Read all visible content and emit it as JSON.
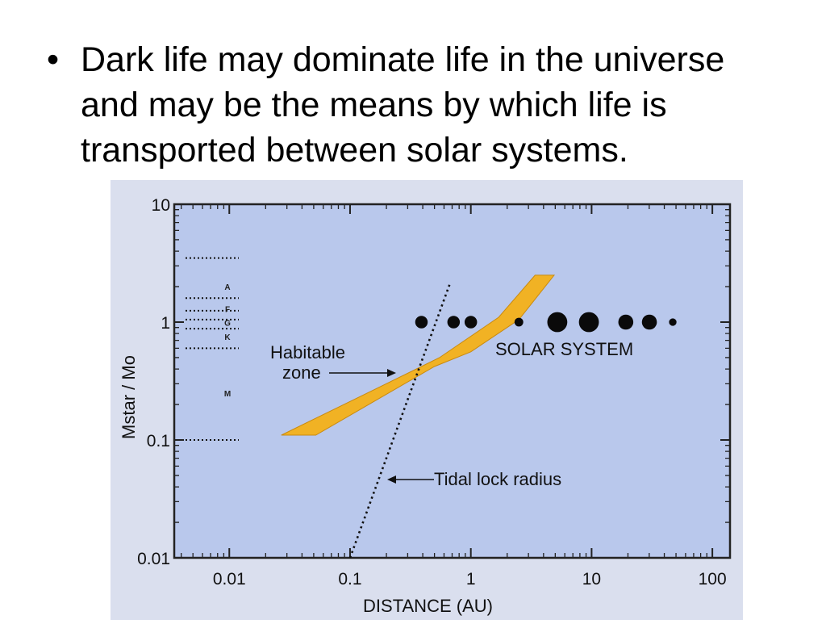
{
  "slide": {
    "bullet_symbol": "•",
    "text": "Dark life may dominate life in the universe\nand may be the means by which life is\ntransported between solar systems."
  },
  "chart_data": {
    "type": "scatter",
    "title": "",
    "xlabel": "DISTANCE  (AU)",
    "ylabel": "Mstar / Mo",
    "xscale": "log",
    "yscale": "log",
    "xlim": [
      0.0035,
      140
    ],
    "ylim": [
      0.01,
      10
    ],
    "x_ticks": [
      {
        "value": 0.01,
        "label": "0.01"
      },
      {
        "value": 0.1,
        "label": "0.1"
      },
      {
        "value": 1,
        "label": "1"
      },
      {
        "value": 10,
        "label": "10"
      },
      {
        "value": 100,
        "label": "100"
      }
    ],
    "y_ticks": [
      {
        "value": 0.01,
        "label": "0.01"
      },
      {
        "value": 0.1,
        "label": "0.1"
      },
      {
        "value": 1,
        "label": "1"
      },
      {
        "value": 10,
        "label": "10"
      }
    ],
    "grid": false,
    "habitable_zone": {
      "label": "Habitable\nzone",
      "color": "#f1b224",
      "polygon": [
        [
          0.027,
          0.11
        ],
        [
          0.052,
          0.11
        ],
        [
          0.5,
          0.42
        ],
        [
          1.0,
          0.56
        ],
        [
          2.5,
          1.05
        ],
        [
          4.9,
          2.5
        ],
        [
          3.4,
          2.5
        ],
        [
          1.7,
          1.1
        ],
        [
          0.55,
          0.5
        ],
        [
          0.15,
          0.26
        ]
      ]
    },
    "tidal_lock": {
      "label": "Tidal lock radius",
      "points": [
        [
          0.1,
          0.01
        ],
        [
          0.68,
          2.2
        ]
      ]
    },
    "solar_system": {
      "label": "SOLAR SYSTEM",
      "mass": 1,
      "planets": [
        {
          "x": 0.39,
          "size": 5
        },
        {
          "x": 0.72,
          "size": 5
        },
        {
          "x": 1.0,
          "size": 5
        },
        {
          "x": 2.5,
          "size": 3.5
        },
        {
          "x": 5.2,
          "size": 8
        },
        {
          "x": 9.5,
          "size": 8
        },
        {
          "x": 19.2,
          "size": 6
        },
        {
          "x": 30.1,
          "size": 6
        },
        {
          "x": 47,
          "size": 3
        }
      ]
    },
    "stellar_classes": [
      {
        "label": "A",
        "mass": 2.0
      },
      {
        "label": "F",
        "mass": 1.3
      },
      {
        "label": "G",
        "mass": 0.99
      },
      {
        "label": "K",
        "mass": 0.75
      },
      {
        "label": "M",
        "mass": 0.25
      }
    ],
    "class_boundaries": [
      3.5,
      1.6,
      1.25,
      1.05,
      0.88,
      0.6,
      0.1
    ]
  }
}
